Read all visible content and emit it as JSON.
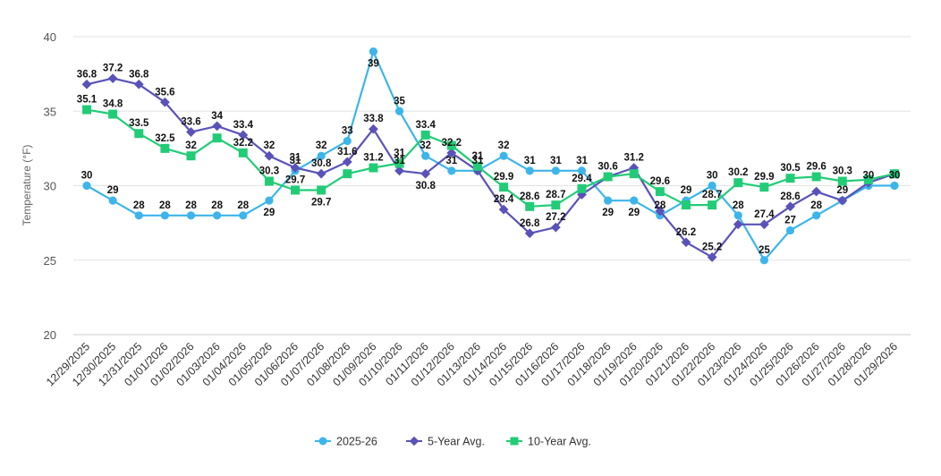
{
  "chart_data": {
    "type": "line",
    "title": "",
    "ylabel": "Temperature (°F)",
    "xlabel": "",
    "ylim": [
      20,
      40
    ],
    "yticks": [
      20,
      25,
      30,
      35,
      40
    ],
    "grid": "horizontal",
    "legend_position": "bottom-center",
    "categories": [
      "12/29/2025",
      "12/30/2025",
      "12/31/2025",
      "01/01/2026",
      "01/02/2026",
      "01/03/2026",
      "01/04/2026",
      "01/05/2026",
      "01/06/2026",
      "01/07/2026",
      "01/08/2026",
      "01/09/2026",
      "01/10/2026",
      "01/11/2026",
      "01/12/2026",
      "01/13/2026",
      "01/14/2026",
      "01/15/2026",
      "01/16/2026",
      "01/17/2026",
      "01/18/2026",
      "01/19/2026",
      "01/20/2026",
      "01/21/2026",
      "01/22/2026",
      "01/23/2026",
      "01/24/2026",
      "01/25/2026",
      "01/26/2026",
      "01/27/2026",
      "01/28/2026",
      "01/29/2026"
    ],
    "series": [
      {
        "name": "2025-26",
        "color": "#3db5ea",
        "marker": "circle",
        "values": [
          30,
          29,
          28,
          28,
          28,
          28,
          28,
          29,
          31,
          32,
          33,
          39,
          35,
          32,
          31,
          31,
          32,
          31,
          31,
          31,
          29,
          29,
          28,
          29,
          30,
          28,
          25,
          27,
          28,
          29,
          30,
          30
        ]
      },
      {
        "name": "5-Year Avg.",
        "color": "#5a52b8",
        "marker": "diamond",
        "values": [
          36.8,
          37.2,
          36.8,
          35.6,
          33.6,
          34,
          33.4,
          32,
          31.2,
          30.8,
          31.6,
          33.8,
          31,
          30.8,
          32.2,
          31,
          28.4,
          26.8,
          27.2,
          29.4,
          30.6,
          31.2,
          28.3,
          26.2,
          25.2,
          27.4,
          27.4,
          28.6,
          29.6,
          29,
          30.2,
          30.8
        ]
      },
      {
        "name": "10-Year Avg.",
        "color": "#22cc77",
        "marker": "square",
        "values": [
          35.1,
          34.8,
          33.5,
          32.5,
          32,
          33.2,
          32.2,
          30.3,
          29.7,
          29.7,
          30.8,
          31.2,
          31.5,
          33.4,
          32.7,
          31.3,
          29.9,
          28.6,
          28.7,
          29.8,
          30.6,
          30.8,
          29.6,
          28.7,
          28.7,
          30.2,
          29.9,
          30.5,
          30.6,
          30.3,
          30.4,
          30.8
        ]
      }
    ],
    "data_labels": [
      {
        "series": 0,
        "index": 0,
        "text": "30"
      },
      {
        "series": 0,
        "index": 1,
        "text": "29"
      },
      {
        "series": 0,
        "index": 2,
        "text": "28"
      },
      {
        "series": 0,
        "index": 3,
        "text": "28"
      },
      {
        "series": 0,
        "index": 4,
        "text": "28"
      },
      {
        "series": 0,
        "index": 5,
        "text": "28"
      },
      {
        "series": 0,
        "index": 6,
        "text": "28"
      },
      {
        "series": 0,
        "index": 7,
        "text": "29",
        "pos": "below"
      },
      {
        "series": 0,
        "index": 8,
        "text": "31"
      },
      {
        "series": 0,
        "index": 9,
        "text": "32"
      },
      {
        "series": 0,
        "index": 10,
        "text": "33"
      },
      {
        "series": 0,
        "index": 11,
        "text": "39",
        "pos": "below"
      },
      {
        "series": 0,
        "index": 12,
        "text": "35"
      },
      {
        "series": 0,
        "index": 13,
        "text": "32"
      },
      {
        "series": 0,
        "index": 14,
        "text": "31"
      },
      {
        "series": 0,
        "index": 15,
        "text": "31"
      },
      {
        "series": 0,
        "index": 16,
        "text": "32"
      },
      {
        "series": 0,
        "index": 17,
        "text": "31"
      },
      {
        "series": 0,
        "index": 18,
        "text": "31"
      },
      {
        "series": 0,
        "index": 19,
        "text": "31"
      },
      {
        "series": 0,
        "index": 20,
        "text": "29",
        "pos": "below"
      },
      {
        "series": 0,
        "index": 21,
        "text": "29",
        "pos": "below"
      },
      {
        "series": 0,
        "index": 22,
        "text": "28"
      },
      {
        "series": 0,
        "index": 23,
        "text": "29"
      },
      {
        "series": 0,
        "index": 24,
        "text": "30"
      },
      {
        "series": 0,
        "index": 25,
        "text": "28"
      },
      {
        "series": 0,
        "index": 26,
        "text": "25"
      },
      {
        "series": 0,
        "index": 27,
        "text": "27"
      },
      {
        "series": 0,
        "index": 28,
        "text": "28"
      },
      {
        "series": 0,
        "index": 29,
        "text": "29"
      },
      {
        "series": 0,
        "index": 30,
        "text": "30"
      },
      {
        "series": 0,
        "index": 31,
        "text": "30"
      },
      {
        "series": 1,
        "index": 0,
        "text": "36.8"
      },
      {
        "series": 1,
        "index": 1,
        "text": "37.2"
      },
      {
        "series": 1,
        "index": 2,
        "text": "36.8"
      },
      {
        "series": 1,
        "index": 3,
        "text": "35.6"
      },
      {
        "series": 1,
        "index": 4,
        "text": "33.6"
      },
      {
        "series": 1,
        "index": 5,
        "text": "34"
      },
      {
        "series": 1,
        "index": 6,
        "text": "33.4"
      },
      {
        "series": 1,
        "index": 7,
        "text": "32"
      },
      {
        "series": 1,
        "index": 8,
        "text": "31"
      },
      {
        "series": 1,
        "index": 9,
        "text": "30.8"
      },
      {
        "series": 1,
        "index": 10,
        "text": "31.6"
      },
      {
        "series": 1,
        "index": 11,
        "text": "33.8"
      },
      {
        "series": 1,
        "index": 12,
        "text": "31"
      },
      {
        "series": 1,
        "index": 13,
        "text": "30.8",
        "pos": "below"
      },
      {
        "series": 1,
        "index": 14,
        "text": "32.2"
      },
      {
        "series": 1,
        "index": 16,
        "text": "28.4"
      },
      {
        "series": 1,
        "index": 17,
        "text": "26.8"
      },
      {
        "series": 1,
        "index": 18,
        "text": "27.2"
      },
      {
        "series": 1,
        "index": 21,
        "text": "31.2"
      },
      {
        "series": 1,
        "index": 23,
        "text": "26.2"
      },
      {
        "series": 1,
        "index": 24,
        "text": "25.2"
      },
      {
        "series": 1,
        "index": 26,
        "text": "27.4"
      },
      {
        "series": 1,
        "index": 27,
        "text": "28.6"
      },
      {
        "series": 2,
        "index": 0,
        "text": "35.1"
      },
      {
        "series": 2,
        "index": 1,
        "text": "34.8"
      },
      {
        "series": 2,
        "index": 2,
        "text": "33.5"
      },
      {
        "series": 2,
        "index": 3,
        "text": "32.5"
      },
      {
        "series": 2,
        "index": 4,
        "text": "32"
      },
      {
        "series": 2,
        "index": 6,
        "text": "32.2"
      },
      {
        "series": 2,
        "index": 7,
        "text": "30.3"
      },
      {
        "series": 2,
        "index": 8,
        "text": "29.7"
      },
      {
        "series": 2,
        "index": 9,
        "text": "29.7",
        "pos": "below"
      },
      {
        "series": 2,
        "index": 11,
        "text": "31.2"
      },
      {
        "series": 2,
        "index": 12,
        "text": "31"
      },
      {
        "series": 2,
        "index": 13,
        "text": "33.4"
      },
      {
        "series": 2,
        "index": 15,
        "text": "31"
      },
      {
        "series": 2,
        "index": 16,
        "text": "29.9"
      },
      {
        "series": 2,
        "index": 17,
        "text": "28.6"
      },
      {
        "series": 2,
        "index": 18,
        "text": "28.7"
      },
      {
        "series": 2,
        "index": 19,
        "text": "29.4"
      },
      {
        "series": 2,
        "index": 20,
        "text": "30.6"
      },
      {
        "series": 2,
        "index": 22,
        "text": "29.6"
      },
      {
        "series": 2,
        "index": 24,
        "text": "28.7"
      },
      {
        "series": 2,
        "index": 25,
        "text": "30.2"
      },
      {
        "series": 2,
        "index": 26,
        "text": "29.9"
      },
      {
        "series": 2,
        "index": 27,
        "text": "30.5"
      },
      {
        "series": 2,
        "index": 28,
        "text": "29.6"
      },
      {
        "series": 2,
        "index": 29,
        "text": "30.3"
      }
    ]
  }
}
